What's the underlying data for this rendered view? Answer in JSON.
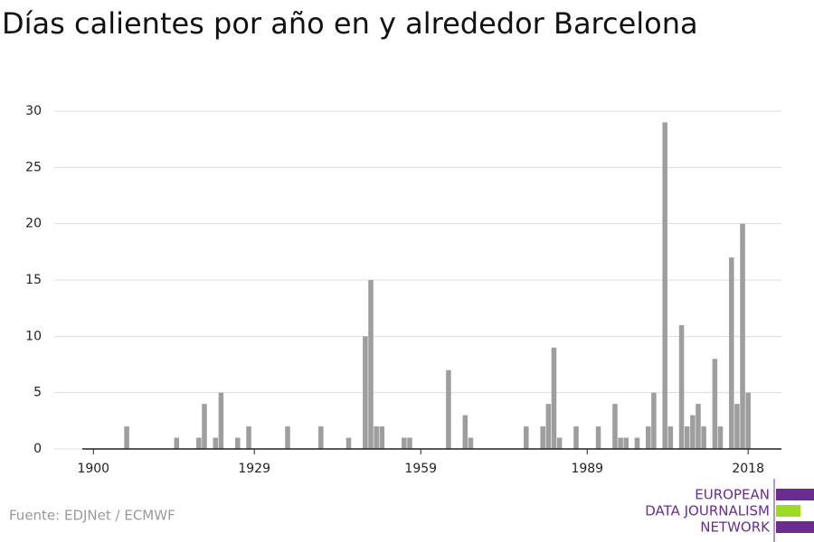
{
  "chart_data": {
    "type": "bar",
    "title": "Días calientes por año en y alrededor Barcelona",
    "source": "Fuente: EDJNet / ECMWF",
    "x": [
      1906,
      1915,
      1919,
      1920,
      1922,
      1923,
      1926,
      1928,
      1935,
      1941,
      1946,
      1949,
      1950,
      1951,
      1952,
      1956,
      1957,
      1964,
      1967,
      1968,
      1978,
      1981,
      1982,
      1983,
      1984,
      1987,
      1991,
      1994,
      1995,
      1996,
      1998,
      2000,
      2001,
      2003,
      2004,
      2006,
      2007,
      2008,
      2009,
      2010,
      2012,
      2013,
      2015,
      2016,
      2017,
      2018
    ],
    "values": [
      2,
      1,
      1,
      4,
      1,
      5,
      1,
      2,
      2,
      2,
      1,
      10,
      15,
      2,
      2,
      1,
      1,
      7,
      3,
      1,
      2,
      2,
      4,
      9,
      1,
      2,
      2,
      4,
      1,
      1,
      1,
      2,
      5,
      29,
      2,
      11,
      2,
      3,
      4,
      2,
      8,
      2,
      17,
      4,
      20,
      5
    ],
    "color": "#9e9e9e",
    "xlim": [
      1898,
      2024
    ],
    "xticks": [
      1900,
      1929,
      1959,
      1989,
      2018
    ],
    "ylim": [
      0,
      30
    ],
    "yticks": [
      0,
      5,
      10,
      15,
      20,
      25,
      30
    ],
    "grid": true
  },
  "logo": {
    "lines": [
      "EUROPEAN",
      "DATA JOURNALISM",
      "NETWORK"
    ]
  }
}
